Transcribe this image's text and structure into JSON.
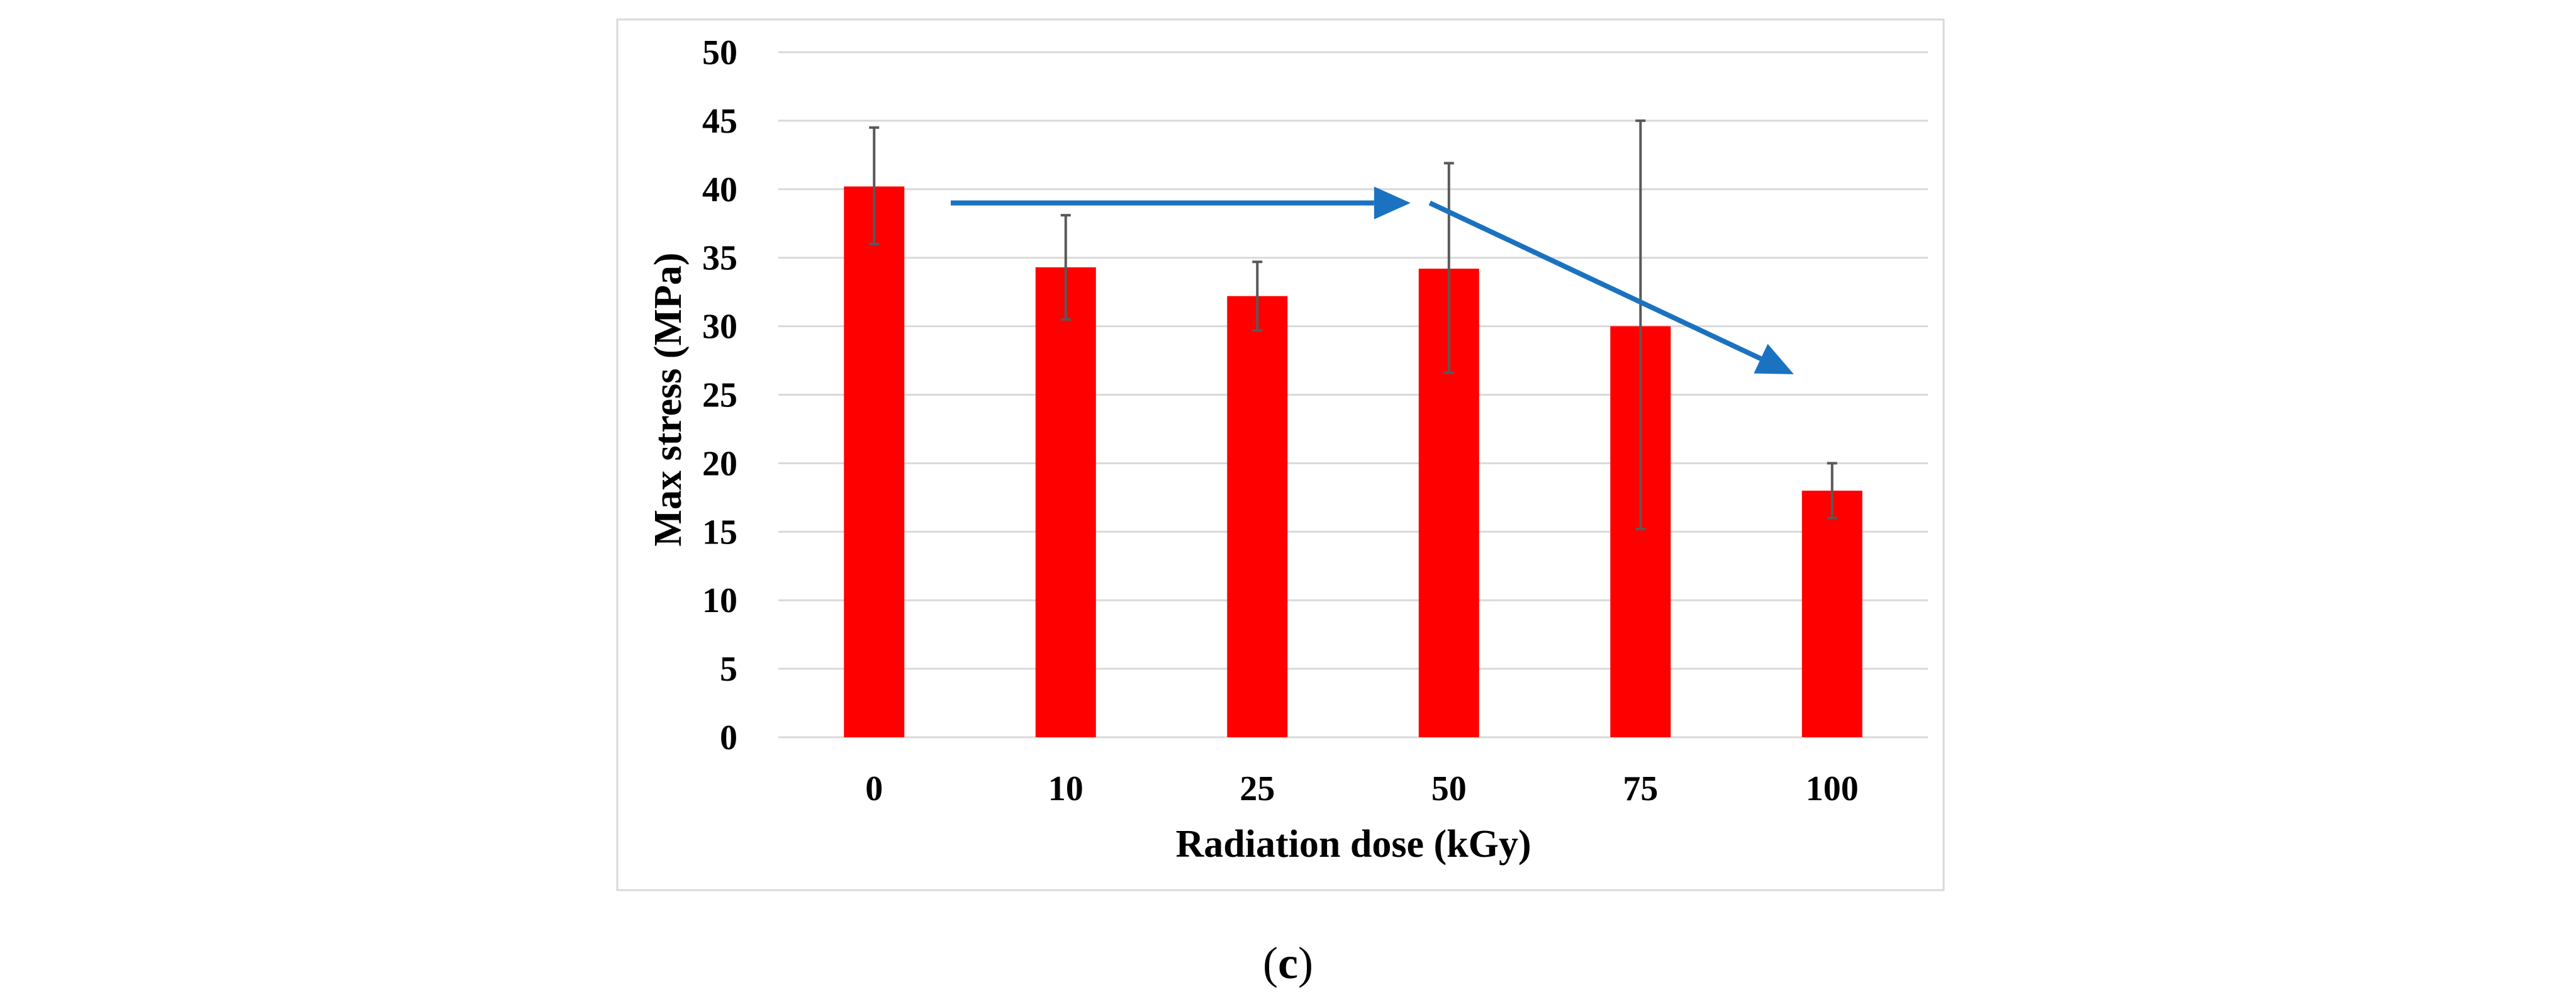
{
  "chart_data": {
    "type": "bar",
    "xlabel": "Radiation dose (kGy)",
    "ylabel": "Max stress (MPa)",
    "categories": [
      "0",
      "10",
      "25",
      "50",
      "75",
      "100"
    ],
    "values": [
      40.2,
      34.3,
      32.2,
      34.2,
      30.0,
      18.0
    ],
    "error_low": [
      36.0,
      30.5,
      29.7,
      26.6,
      15.2,
      16.0
    ],
    "error_high": [
      44.5,
      38.1,
      34.7,
      41.9,
      45.0,
      20.0
    ],
    "ylim": [
      0,
      50
    ],
    "yticks": [
      0,
      5,
      10,
      15,
      20,
      25,
      30,
      35,
      40,
      45,
      50
    ],
    "grid": true,
    "bar_color": "#ff0000",
    "arrow_color": "#1a72c0",
    "annotations": [
      {
        "type": "arrow",
        "from": [
          0.4,
          39
        ],
        "to": [
          2.8,
          39
        ]
      },
      {
        "type": "arrow",
        "from": [
          2.9,
          39
        ],
        "to": [
          4.8,
          26.5
        ]
      }
    ]
  },
  "caption": {
    "open": "(",
    "letter": "c",
    "close": ")"
  }
}
